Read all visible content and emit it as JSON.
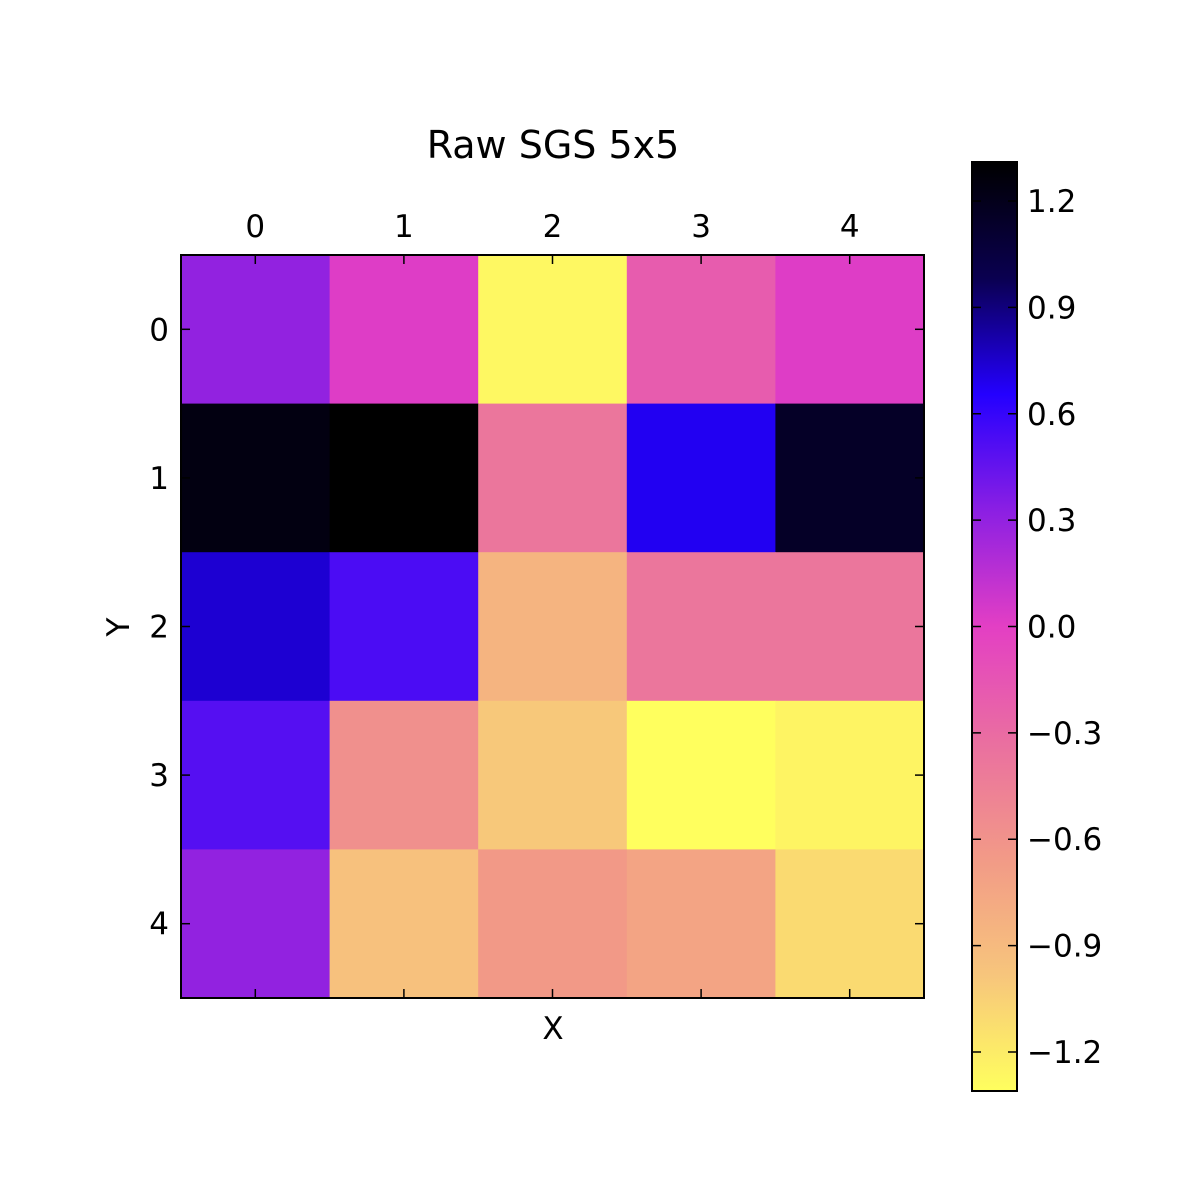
{
  "chart_data": {
    "type": "heatmap",
    "title": "Raw SGS 5x5",
    "xlabel": "X",
    "ylabel": "Y",
    "x_categories": [
      "0",
      "1",
      "2",
      "3",
      "4"
    ],
    "y_categories": [
      "0",
      "1",
      "2",
      "3",
      "4"
    ],
    "values": [
      [
        0.3,
        0.02,
        -1.27,
        -0.2,
        0.02
      ],
      [
        1.24,
        1.31,
        -0.38,
        0.68,
        1.15
      ],
      [
        0.74,
        0.53,
        -0.85,
        -0.38,
        -0.38
      ],
      [
        0.5,
        -0.58,
        -1.0,
        -1.31,
        -1.25
      ],
      [
        0.3,
        -0.95,
        -0.65,
        -0.73,
        -1.1
      ]
    ],
    "colorbar": {
      "min": -1.31,
      "max": 1.31,
      "ticks": [
        "1.2",
        "0.9",
        "0.6",
        "0.3",
        "0.0",
        "−0.3",
        "−0.6",
        "−0.9",
        "−1.2"
      ],
      "tick_values": [
        1.2,
        0.9,
        0.6,
        0.3,
        0.0,
        -0.3,
        -0.6,
        -0.9,
        -1.2
      ]
    },
    "colormap": "plasma_r",
    "colormap_stops": [
      "#0d0887",
      "#6a00a8",
      "#b12a90",
      "#e16462",
      "#fca636",
      "#f0f921"
    ],
    "colormap_display_stops": [
      "#000000",
      "#0a0050",
      "#2400ff",
      "#8b1fe3",
      "#e33fc4",
      "#ea6fa0",
      "#f29a87",
      "#f7c57c",
      "#ffff5e"
    ],
    "x_ticks_position": "top",
    "grid": false
  }
}
